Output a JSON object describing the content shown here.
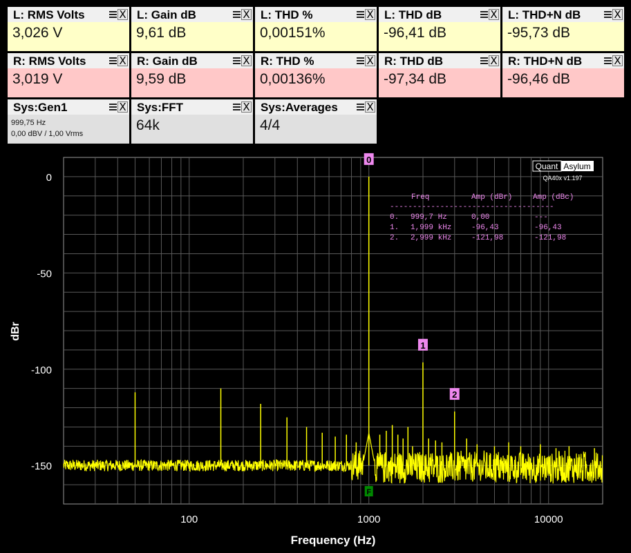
{
  "tiles": [
    {
      "title": "L: RMS Volts",
      "value": "3,026 V",
      "color": "yellow"
    },
    {
      "title": "L: Gain dB",
      "value": "9,61 dB",
      "color": "yellow"
    },
    {
      "title": "L: THD %",
      "value": "0,00151%",
      "color": "yellow"
    },
    {
      "title": "L: THD dB",
      "value": "-96,41 dB",
      "color": "yellow"
    },
    {
      "title": "L: THD+N dB",
      "value": "-95,73 dB",
      "color": "yellow"
    },
    {
      "title": "R: RMS Volts",
      "value": "3,019 V",
      "color": "red"
    },
    {
      "title": "R: Gain dB",
      "value": "9,59 dB",
      "color": "red"
    },
    {
      "title": "R: THD %",
      "value": "0,00136%",
      "color": "red"
    },
    {
      "title": "R: THD dB",
      "value": "-97,34 dB",
      "color": "red"
    },
    {
      "title": "R: THD+N dB",
      "value": "-96,46 dB",
      "color": "red"
    },
    {
      "title": "Sys:Gen1",
      "value": "",
      "line1": "999,75 Hz",
      "line2": "0,00 dBV  / 1,00 Vrms",
      "color": "gray"
    },
    {
      "title": "Sys:FFT",
      "value": "64k",
      "color": "gray"
    },
    {
      "title": "Sys:Averages",
      "value": "4/4",
      "color": "gray"
    }
  ],
  "tile_close_glyph": "X",
  "logo": {
    "left": "Quant",
    "right": "Asylum",
    "version": "QA40x v1.197"
  },
  "colors": {
    "trace": "#ffff00",
    "marker": "#ee88ee",
    "table_text": "#ee88ee",
    "grid": "#5a5a5a",
    "fmarker": "#008800"
  },
  "harmonic_table": {
    "headers": [
      "Freq",
      "Amp (dBr)",
      "Amp (dBc)"
    ],
    "separator": "------------------------------------",
    "rows": [
      {
        "idx": "0.",
        "freq": "999,7 Hz",
        "dbr": "0,00",
        "dbc": "---"
      },
      {
        "idx": "1.",
        "freq": "1,999 kHz",
        "dbr": "-96,43",
        "dbc": "-96,43"
      },
      {
        "idx": "2.",
        "freq": "2,999 kHz",
        "dbr": "-121,98",
        "dbc": "-121,98"
      }
    ]
  },
  "fundamental_marker_label": "F",
  "chart_data": {
    "type": "line",
    "xlabel": "Frequency (Hz)",
    "ylabel": "dBr",
    "x_scale": "log",
    "xlim": [
      20,
      20000
    ],
    "ylim": [
      -170,
      10
    ],
    "x_ticks": [
      {
        "value": 100,
        "label": "100"
      },
      {
        "value": 1000,
        "label": "1000"
      },
      {
        "value": 10000,
        "label": "10000"
      }
    ],
    "y_ticks": [
      {
        "value": 0,
        "label": "0"
      },
      {
        "value": -50,
        "label": "-50"
      },
      {
        "value": -100,
        "label": "-100"
      },
      {
        "value": -150,
        "label": "-150"
      }
    ],
    "grid": true,
    "noise_floor_dbr": -150,
    "series": [
      {
        "color": "#ffff00",
        "peaks": [
          {
            "freq": 50,
            "amp": -112
          },
          {
            "freq": 150,
            "amp": -110
          },
          {
            "freq": 250,
            "amp": -118
          },
          {
            "freq": 350,
            "amp": -125
          },
          {
            "freq": 450,
            "amp": -130
          },
          {
            "freq": 550,
            "amp": -133
          },
          {
            "freq": 650,
            "amp": -135
          },
          {
            "freq": 750,
            "amp": -134
          },
          {
            "freq": 850,
            "amp": -138
          },
          {
            "freq": 999.7,
            "amp": 0
          },
          {
            "freq": 1150,
            "amp": -134
          },
          {
            "freq": 1250,
            "amp": -132
          },
          {
            "freq": 1350,
            "amp": -129
          },
          {
            "freq": 1450,
            "amp": -134
          },
          {
            "freq": 1550,
            "amp": -136
          },
          {
            "freq": 1650,
            "amp": -130
          },
          {
            "freq": 1750,
            "amp": -140
          },
          {
            "freq": 1999,
            "amp": -96.43
          },
          {
            "freq": 2150,
            "amp": -136
          },
          {
            "freq": 2350,
            "amp": -137
          },
          {
            "freq": 2550,
            "amp": -138
          },
          {
            "freq": 2999,
            "amp": -121.98
          },
          {
            "freq": 3500,
            "amp": -136
          },
          {
            "freq": 4000,
            "amp": -139
          },
          {
            "freq": 5000,
            "amp": -140
          },
          {
            "freq": 6000,
            "amp": -138
          },
          {
            "freq": 7000,
            "amp": -140
          },
          {
            "freq": 9000,
            "amp": -139
          },
          {
            "freq": 11000,
            "amp": -141
          },
          {
            "freq": 13000,
            "amp": -140
          },
          {
            "freq": 16000,
            "amp": -143
          },
          {
            "freq": 18000,
            "amp": -141
          }
        ]
      }
    ],
    "harmonic_markers": [
      {
        "label": "0",
        "freq": 999.7,
        "amp": 0
      },
      {
        "label": "1",
        "freq": 1999,
        "amp": -96.43
      },
      {
        "label": "2",
        "freq": 2999,
        "amp": -121.98
      }
    ]
  }
}
